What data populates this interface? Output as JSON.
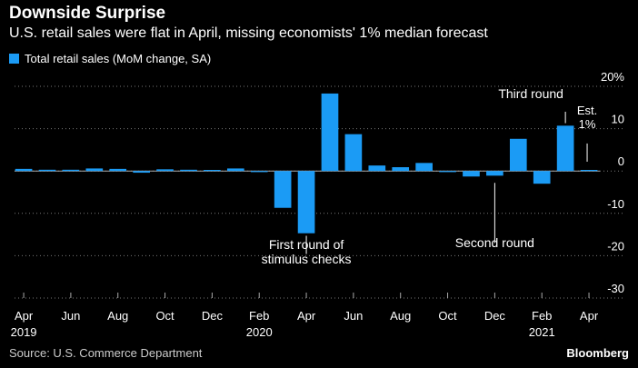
{
  "header": {
    "title": "Downside Surprise",
    "subtitle": "U.S. retail sales were flat in April, missing economists' 1% median forecast"
  },
  "legend": {
    "label": "Total retail sales (MoM change, SA)",
    "color": "#1b9bf5"
  },
  "footer": {
    "source": "Source: U.S. Commerce Department",
    "brand": "Bloomberg"
  },
  "chart_data": {
    "type": "bar",
    "title": "Downside Surprise",
    "subtitle": "U.S. retail sales were flat in April, missing economists' 1% median forecast",
    "xlabel": "",
    "ylabel": "",
    "ylim": [
      -30,
      20
    ],
    "yticks": [
      20,
      10,
      0,
      -10,
      -20,
      -30
    ],
    "ytick_labels": [
      "20%",
      "10",
      "0",
      "-10",
      "-20",
      "-30"
    ],
    "grid": true,
    "legend": "top-left",
    "bar_color": "#1b9bf5",
    "categories": [
      "Apr 2019",
      "May 2019",
      "Jun 2019",
      "Jul 2019",
      "Aug 2019",
      "Sep 2019",
      "Oct 2019",
      "Nov 2019",
      "Dec 2019",
      "Jan 2020",
      "Feb 2020",
      "Mar 2020",
      "Apr 2020",
      "May 2020",
      "Jun 2020",
      "Jul 2020",
      "Aug 2020",
      "Sep 2020",
      "Oct 2020",
      "Nov 2020",
      "Dec 2020",
      "Jan 2021",
      "Feb 2021",
      "Mar 2021",
      "Apr 2021"
    ],
    "series": [
      {
        "name": "Total retail sales (MoM change, SA)",
        "values": [
          0.5,
          0.3,
          0.3,
          0.6,
          0.5,
          -0.4,
          0.4,
          0.3,
          0.2,
          0.6,
          -0.2,
          -8.7,
          -14.7,
          18.3,
          8.7,
          1.3,
          0.9,
          1.9,
          -0.1,
          -1.3,
          -1.1,
          7.6,
          -3.0,
          10.7,
          0.0
        ]
      }
    ],
    "x_tick_labels": [
      {
        "index": 0,
        "label": "Apr",
        "year": "2019"
      },
      {
        "index": 2,
        "label": "Jun",
        "year": ""
      },
      {
        "index": 4,
        "label": "Aug",
        "year": ""
      },
      {
        "index": 6,
        "label": "Oct",
        "year": ""
      },
      {
        "index": 8,
        "label": "Dec",
        "year": ""
      },
      {
        "index": 10,
        "label": "Feb",
        "year": "2020"
      },
      {
        "index": 12,
        "label": "Apr",
        "year": ""
      },
      {
        "index": 14,
        "label": "Jun",
        "year": ""
      },
      {
        "index": 16,
        "label": "Aug",
        "year": ""
      },
      {
        "index": 18,
        "label": "Oct",
        "year": ""
      },
      {
        "index": 20,
        "label": "Dec",
        "year": ""
      },
      {
        "index": 22,
        "label": "Feb",
        "year": "2021"
      },
      {
        "index": 24,
        "label": "Apr",
        "year": ""
      }
    ],
    "annotations": [
      {
        "name": "first-round",
        "index": 12,
        "value": -20,
        "lines": [
          "First round of",
          "stimulus checks"
        ]
      },
      {
        "name": "second-round",
        "index": 20,
        "value": -20,
        "lines": [
          "Second round"
        ]
      },
      {
        "name": "third-round",
        "index": 23,
        "value": 15,
        "lines": [
          "Third round"
        ]
      },
      {
        "name": "estimate",
        "index": 24,
        "value": 1,
        "lines": [
          "Est.",
          "1%"
        ]
      }
    ]
  }
}
